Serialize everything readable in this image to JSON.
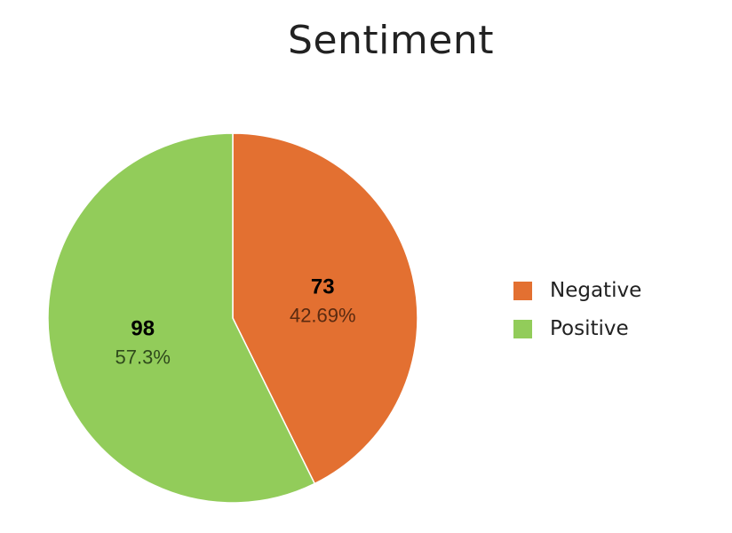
{
  "chart_data": {
    "type": "pie",
    "title": "Sentiment",
    "slices": [
      {
        "label": "Negative",
        "value": 73,
        "percent_label": "42.69%",
        "color": "#E37031",
        "text_color": "#5A2A10"
      },
      {
        "label": "Positive",
        "value": 98,
        "percent_label": "57.3%",
        "color": "#92CC5A",
        "text_color": "#2F4A1C"
      }
    ],
    "legend": {
      "position": "right",
      "entries": [
        "Negative",
        "Positive"
      ]
    },
    "start_angle": "12 o'clock",
    "direction": "clockwise"
  }
}
